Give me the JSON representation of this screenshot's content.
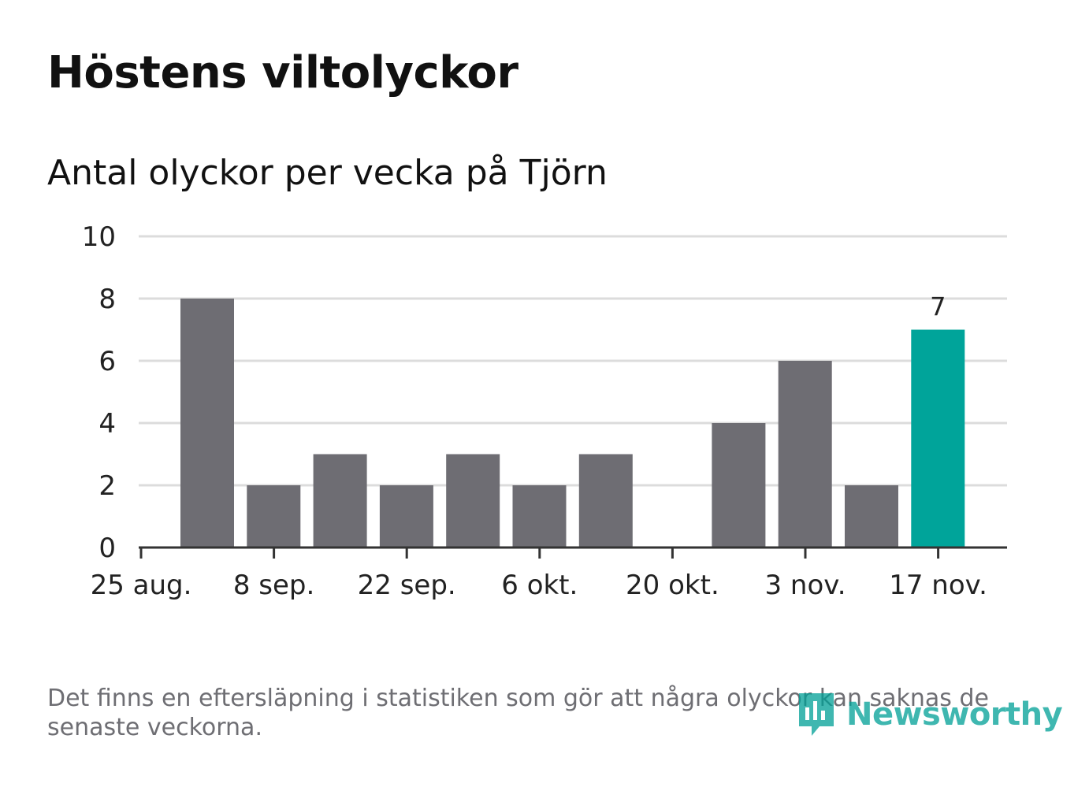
{
  "header": {
    "title": "Höstens viltolyckor",
    "subtitle": "Antal olyckor per vecka på Tjörn"
  },
  "footer": {
    "note": "Det finns en eftersläpning i statistiken som gör att några olyckor kan saknas de senaste veckorna.",
    "brand": "Newsworthy"
  },
  "colors": {
    "bar": "#6e6d73",
    "highlight": "#00a49a",
    "grid": "#dcdcdc",
    "axis": "#333333",
    "text": "#222222"
  },
  "chart_data": {
    "type": "bar",
    "title": "Antal olyckor per vecka på Tjörn",
    "xlabel": "",
    "ylabel": "",
    "ylim": [
      0,
      10
    ],
    "yticks": [
      "0",
      "2",
      "4",
      "6",
      "8",
      "10"
    ],
    "xticks": [
      "25 aug.",
      "8 sep.",
      "22 sep.",
      "6 okt.",
      "20 okt.",
      "3 nov.",
      "17 nov."
    ],
    "values": [
      8,
      2,
      3,
      2,
      3,
      2,
      3,
      0,
      4,
      6,
      2,
      7
    ],
    "highlight_index": 11,
    "data_labels": [
      {
        "index": 11,
        "text": "7"
      }
    ],
    "grid": true
  }
}
